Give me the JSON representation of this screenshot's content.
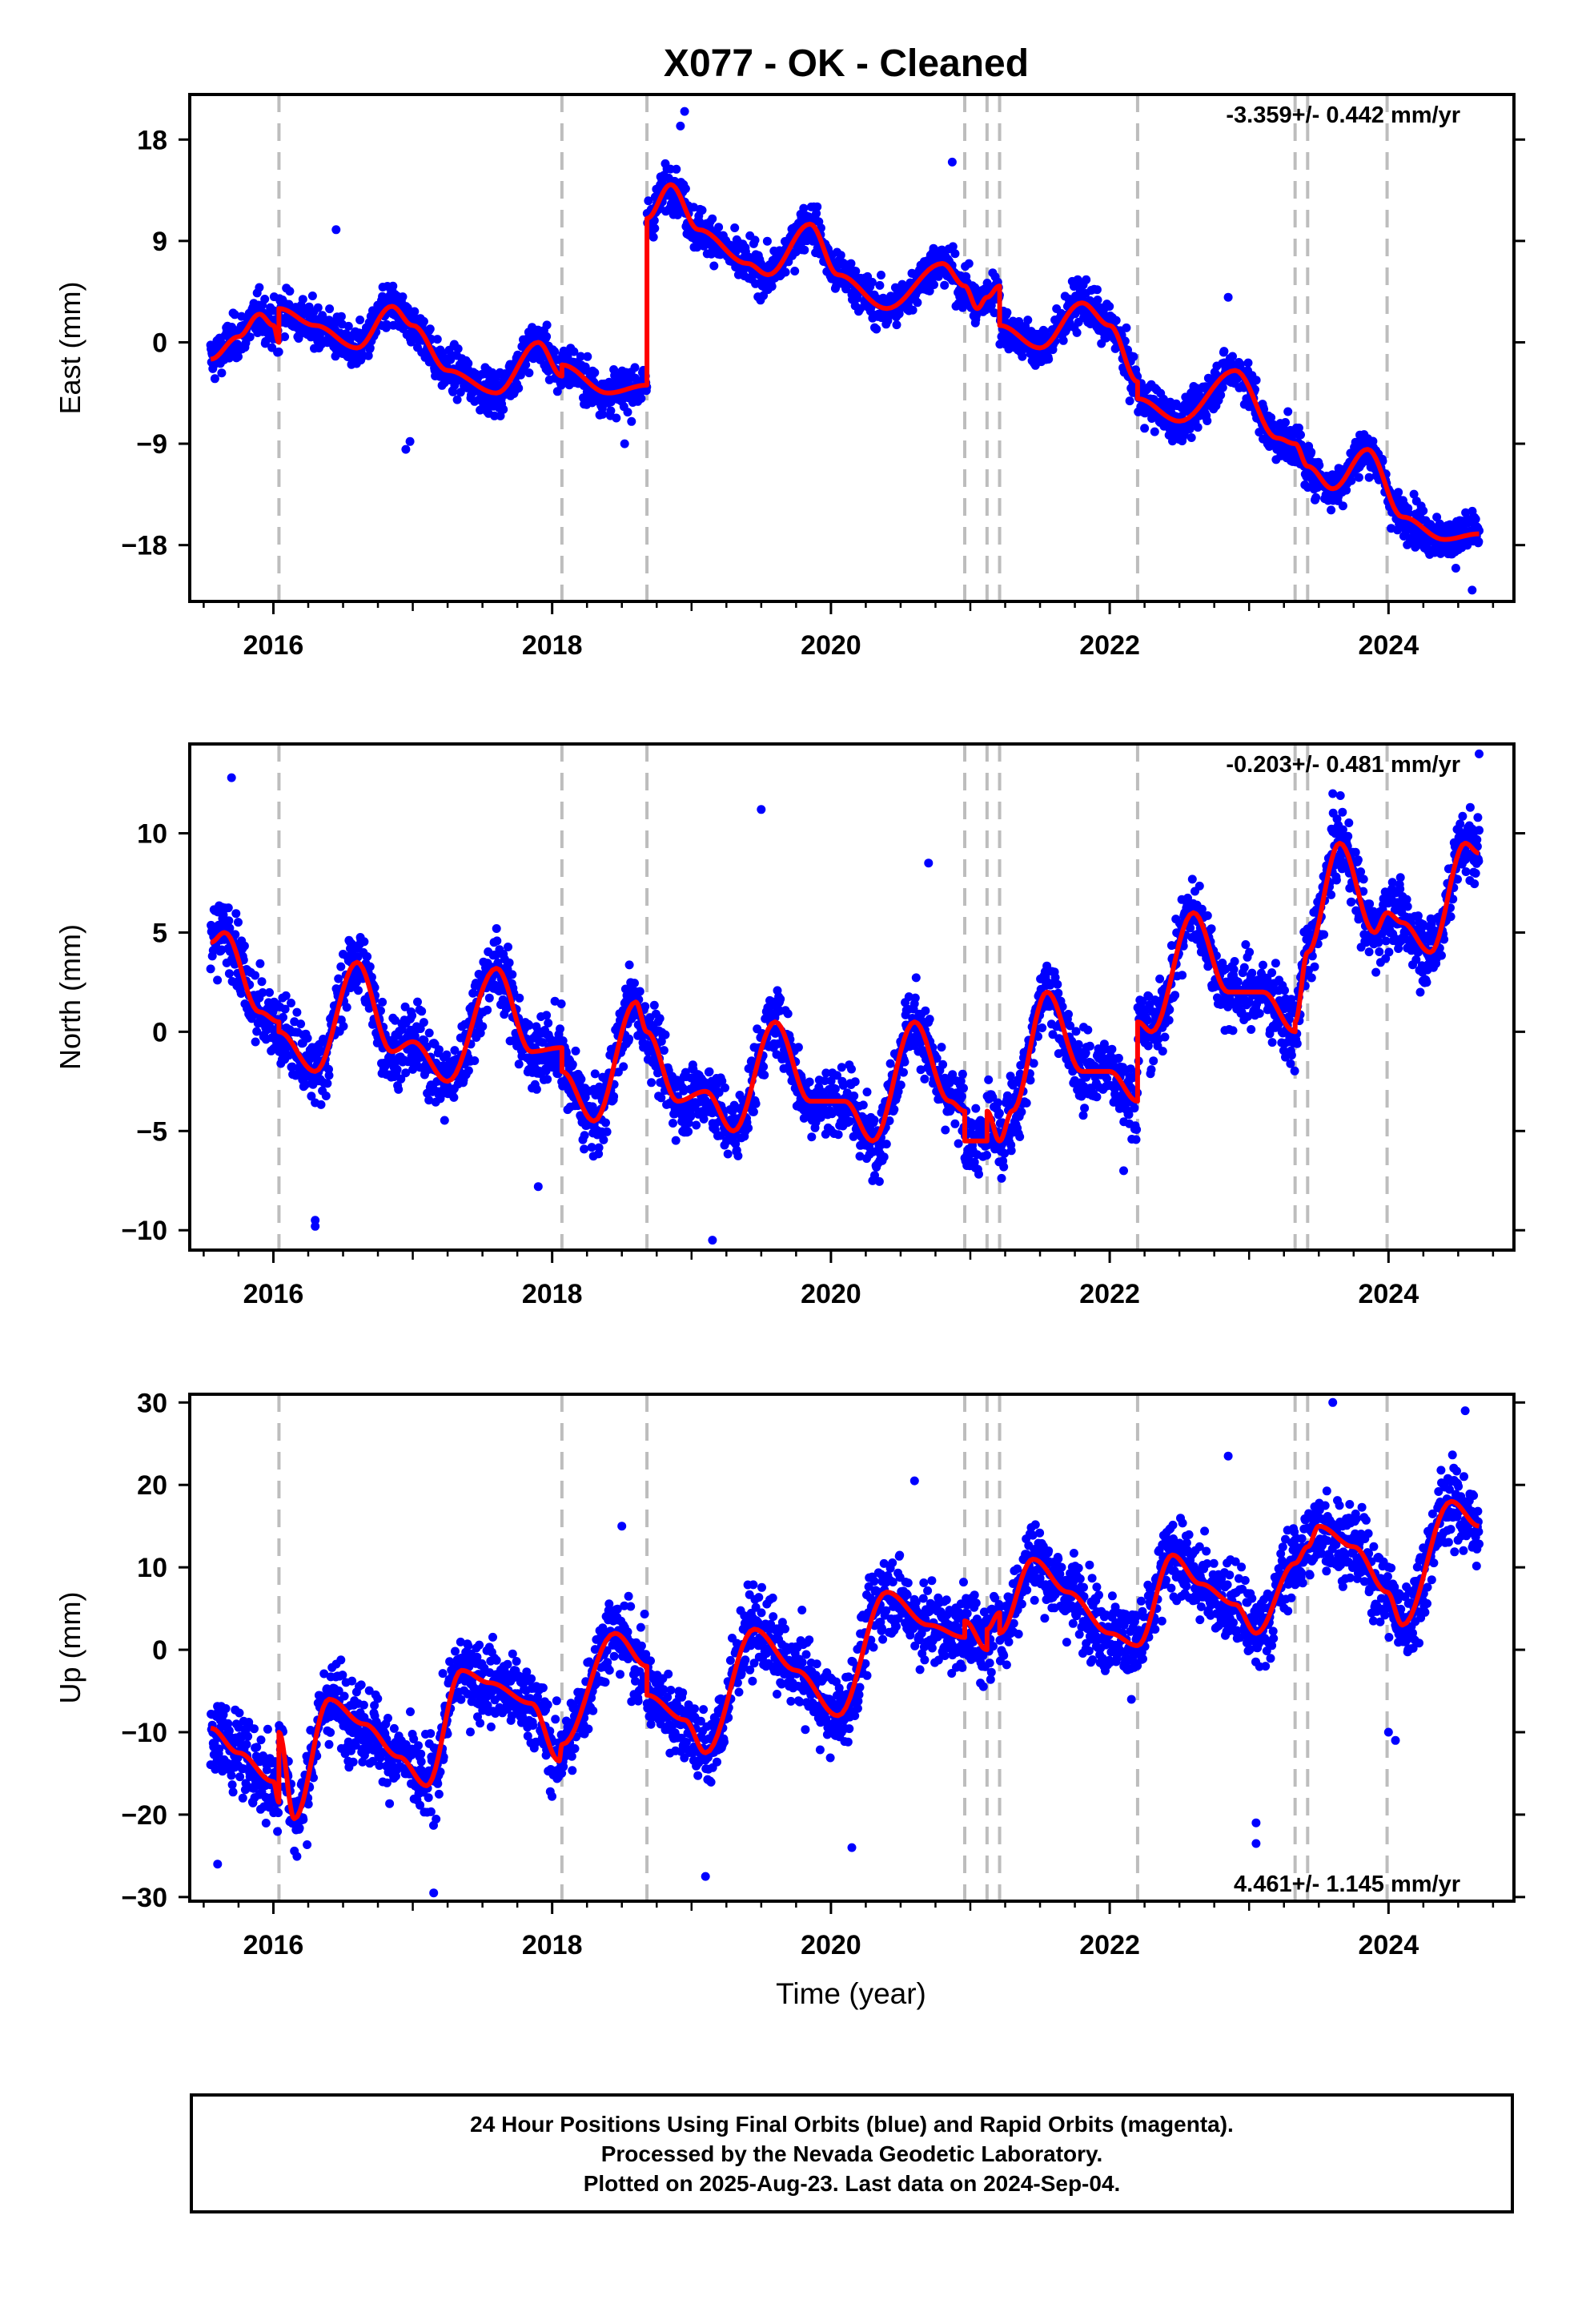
{
  "title": "X077  - OK - Cleaned",
  "xlabel": "Time (year)",
  "footer": {
    "line1": "24 Hour Positions Using Final Orbits (blue) and Rapid Orbits (magenta).",
    "line2": "Processed by the Nevada Geodetic Laboratory.",
    "line3": "Plotted on 2025-Aug-23. Last data on 2024-Sep-04."
  },
  "colors": {
    "points": "#0000ff",
    "fit": "#ff0000",
    "events": "#bdbdbd",
    "frame": "#000000"
  },
  "chart_data": [
    {
      "type": "scatter",
      "ylabel": "East (mm)",
      "rate_text": "-3.359+/- 0.442 mm/yr",
      "xlim": [
        2015.4,
        2024.9
      ],
      "ylim": [
        -23,
        22
      ],
      "xticks": [
        2016,
        2018,
        2020,
        2022,
        2024
      ],
      "yticks": [
        -18,
        -9,
        0,
        9,
        18
      ],
      "grid": false,
      "events": [
        2016.04,
        2018.07,
        2018.68,
        2020.96,
        2021.12,
        2021.21,
        2022.2,
        2023.33,
        2023.42,
        2023.99
      ],
      "fit": [
        [
          2015.55,
          -1.5
        ],
        [
          2015.75,
          0.5
        ],
        [
          2015.9,
          2.5
        ],
        [
          2016.0,
          1.5
        ],
        [
          2016.04,
          0.0
        ],
        [
          2016.04,
          3.0
        ],
        [
          2016.3,
          1.5
        ],
        [
          2016.6,
          -0.5
        ],
        [
          2016.85,
          3.2
        ],
        [
          2017.0,
          1.5
        ],
        [
          2017.25,
          -2.5
        ],
        [
          2017.6,
          -4.5
        ],
        [
          2017.9,
          0.0
        ],
        [
          2018.07,
          -3.0
        ],
        [
          2018.07,
          -2.0
        ],
        [
          2018.4,
          -4.5
        ],
        [
          2018.68,
          -3.8
        ],
        [
          2018.68,
          11.0
        ],
        [
          2018.85,
          14.0
        ],
        [
          2019.05,
          10.0
        ],
        [
          2019.4,
          7.0
        ],
        [
          2019.55,
          6.0
        ],
        [
          2019.85,
          10.5
        ],
        [
          2020.05,
          6.0
        ],
        [
          2020.4,
          3.0
        ],
        [
          2020.8,
          7.0
        ],
        [
          2020.96,
          5.0
        ],
        [
          2021.05,
          3.0
        ],
        [
          2021.12,
          4.0
        ],
        [
          2021.21,
          5.0
        ],
        [
          2021.21,
          1.5
        ],
        [
          2021.5,
          -0.5
        ],
        [
          2021.8,
          3.5
        ],
        [
          2022.0,
          1.5
        ],
        [
          2022.2,
          -3.5
        ],
        [
          2022.2,
          -5.0
        ],
        [
          2022.5,
          -7.0
        ],
        [
          2022.9,
          -2.5
        ],
        [
          2023.2,
          -8.5
        ],
        [
          2023.33,
          -9.0
        ],
        [
          2023.42,
          -11.0
        ],
        [
          2023.6,
          -13.0
        ],
        [
          2023.85,
          -9.5
        ],
        [
          2024.1,
          -15.5
        ],
        [
          2024.4,
          -17.5
        ],
        [
          2024.65,
          -17.0
        ]
      ],
      "noise": 1.6,
      "outliers": [
        [
          2018.95,
          20.5
        ],
        [
          2018.92,
          19.2
        ],
        [
          2020.87,
          16.0
        ],
        [
          2016.95,
          -9.5
        ],
        [
          2016.98,
          -8.8
        ],
        [
          2024.6,
          -22.0
        ],
        [
          2022.85,
          4.0
        ],
        [
          2016.45,
          10.0
        ],
        [
          2018.52,
          -9.0
        ]
      ]
    },
    {
      "type": "scatter",
      "ylabel": "North (mm)",
      "rate_text": "-0.203+/- 0.481 mm/yr",
      "xlim": [
        2015.4,
        2024.9
      ],
      "ylim": [
        -11,
        14.5
      ],
      "xticks": [
        2016,
        2018,
        2020,
        2022,
        2024
      ],
      "yticks": [
        -10,
        -5,
        0,
        5,
        10
      ],
      "grid": false,
      "events": [
        2016.04,
        2018.07,
        2018.68,
        2020.96,
        2021.12,
        2021.21,
        2022.2,
        2023.33,
        2023.42,
        2023.99
      ],
      "fit": [
        [
          2015.55,
          4.5
        ],
        [
          2015.65,
          5.0
        ],
        [
          2015.9,
          1.0
        ],
        [
          2016.04,
          0.5
        ],
        [
          2016.04,
          0.0
        ],
        [
          2016.3,
          -2.0
        ],
        [
          2016.6,
          3.5
        ],
        [
          2016.85,
          -1.0
        ],
        [
          2017.0,
          -0.5
        ],
        [
          2017.25,
          -2.5
        ],
        [
          2017.6,
          3.2
        ],
        [
          2017.85,
          -1.0
        ],
        [
          2018.07,
          -0.8
        ],
        [
          2018.07,
          -2.0
        ],
        [
          2018.3,
          -4.5
        ],
        [
          2018.6,
          1.5
        ],
        [
          2018.68,
          0.0
        ],
        [
          2018.9,
          -3.5
        ],
        [
          2019.1,
          -3.0
        ],
        [
          2019.3,
          -5.0
        ],
        [
          2019.6,
          0.5
        ],
        [
          2019.85,
          -3.5
        ],
        [
          2020.1,
          -3.5
        ],
        [
          2020.3,
          -5.5
        ],
        [
          2020.6,
          0.5
        ],
        [
          2020.85,
          -3.5
        ],
        [
          2020.96,
          -4.0
        ],
        [
          2020.96,
          -5.5
        ],
        [
          2021.12,
          -5.5
        ],
        [
          2021.12,
          -4.0
        ],
        [
          2021.21,
          -5.5
        ],
        [
          2021.3,
          -4.0
        ],
        [
          2021.55,
          2.0
        ],
        [
          2021.8,
          -2.0
        ],
        [
          2022.0,
          -2.0
        ],
        [
          2022.2,
          -3.5
        ],
        [
          2022.2,
          0.5
        ],
        [
          2022.3,
          0.0
        ],
        [
          2022.6,
          6.0
        ],
        [
          2022.85,
          2.0
        ],
        [
          2023.1,
          2.0
        ],
        [
          2023.33,
          0.0
        ],
        [
          2023.33,
          0.5
        ],
        [
          2023.42,
          4.0
        ],
        [
          2023.65,
          9.5
        ],
        [
          2023.9,
          5.0
        ],
        [
          2023.99,
          6.0
        ],
        [
          2024.1,
          5.5
        ],
        [
          2024.3,
          4.0
        ],
        [
          2024.55,
          9.5
        ],
        [
          2024.65,
          9.0
        ]
      ],
      "noise": 1.5,
      "outliers": [
        [
          2015.7,
          12.8
        ],
        [
          2016.3,
          -9.5
        ],
        [
          2016.3,
          -9.8
        ],
        [
          2019.5,
          11.2
        ],
        [
          2019.15,
          -10.5
        ],
        [
          2017.9,
          -7.8
        ],
        [
          2024.65,
          14.0
        ],
        [
          2023.6,
          12.0
        ],
        [
          2022.1,
          -7.0
        ],
        [
          2020.7,
          8.5
        ]
      ]
    },
    {
      "type": "scatter",
      "ylabel": "Up (mm)",
      "rate_text": "4.461+/- 1.145 mm/yr",
      "xlim": [
        2015.4,
        2024.9
      ],
      "ylim": [
        -30.5,
        31
      ],
      "xticks": [
        2016,
        2018,
        2020,
        2022,
        2024
      ],
      "yticks": [
        -30,
        -20,
        -10,
        0,
        10,
        20,
        30
      ],
      "grid": false,
      "events": [
        2016.04,
        2018.07,
        2018.68,
        2020.96,
        2021.12,
        2021.21,
        2022.2,
        2023.33,
        2023.42,
        2023.99
      ],
      "fit": [
        [
          2015.55,
          -9.5
        ],
        [
          2015.75,
          -12.5
        ],
        [
          2016.0,
          -16.0
        ],
        [
          2016.04,
          -18.5
        ],
        [
          2016.04,
          -10.0
        ],
        [
          2016.15,
          -20.5
        ],
        [
          2016.4,
          -6.0
        ],
        [
          2016.65,
          -9.0
        ],
        [
          2016.9,
          -13.0
        ],
        [
          2017.1,
          -16.5
        ],
        [
          2017.35,
          -2.5
        ],
        [
          2017.55,
          -4.0
        ],
        [
          2017.85,
          -6.5
        ],
        [
          2018.05,
          -13.5
        ],
        [
          2018.07,
          -11.5
        ],
        [
          2018.45,
          2.0
        ],
        [
          2018.68,
          -2.0
        ],
        [
          2018.68,
          -5.5
        ],
        [
          2018.95,
          -8.5
        ],
        [
          2019.1,
          -12.5
        ],
        [
          2019.45,
          2.5
        ],
        [
          2019.75,
          -2.5
        ],
        [
          2020.05,
          -8.0
        ],
        [
          2020.4,
          7.0
        ],
        [
          2020.7,
          3.0
        ],
        [
          2020.96,
          1.5
        ],
        [
          2020.96,
          3.5
        ],
        [
          2021.12,
          0.0
        ],
        [
          2021.12,
          2.5
        ],
        [
          2021.21,
          4.5
        ],
        [
          2021.21,
          2.0
        ],
        [
          2021.45,
          11.0
        ],
        [
          2021.7,
          7.0
        ],
        [
          2022.0,
          2.0
        ],
        [
          2022.2,
          0.5
        ],
        [
          2022.45,
          11.5
        ],
        [
          2022.65,
          8.0
        ],
        [
          2022.9,
          5.5
        ],
        [
          2023.05,
          2.0
        ],
        [
          2023.33,
          10.5
        ],
        [
          2023.42,
          12.5
        ],
        [
          2023.5,
          15.0
        ],
        [
          2023.75,
          12.5
        ],
        [
          2023.99,
          7.0
        ],
        [
          2024.1,
          3.0
        ],
        [
          2024.45,
          18.0
        ],
        [
          2024.65,
          15.0
        ]
      ],
      "noise": 4.0,
      "outliers": [
        [
          2017.15,
          -29.5
        ],
        [
          2019.1,
          -27.5
        ],
        [
          2023.05,
          -23.5
        ],
        [
          2023.05,
          -21.0
        ],
        [
          2020.15,
          -24.0
        ],
        [
          2023.6,
          30.0
        ],
        [
          2024.55,
          29.0
        ],
        [
          2020.6,
          20.5
        ],
        [
          2022.85,
          23.5
        ],
        [
          2015.6,
          -26.0
        ],
        [
          2018.5,
          15.0
        ],
        [
          2024.0,
          -10.0
        ],
        [
          2024.05,
          -11.0
        ]
      ]
    }
  ]
}
